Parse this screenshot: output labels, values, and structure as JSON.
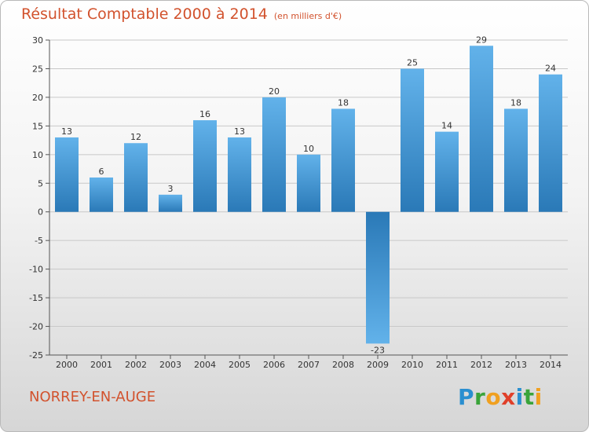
{
  "title": "Résultat Comptable 2000 à 2014",
  "unit_note": "(en milliers d'€)",
  "commune": "NORREY-EN-AUGE",
  "logo": {
    "text": "Proxiti",
    "letters": [
      {
        "ch": "P",
        "color": "#2a8fd0"
      },
      {
        "ch": "r",
        "color": "#3aa43a"
      },
      {
        "ch": "o",
        "color": "#f0a020"
      },
      {
        "ch": "x",
        "color": "#e0402a"
      },
      {
        "ch": "i",
        "color": "#2a8fd0"
      },
      {
        "ch": "t",
        "color": "#3aa43a"
      },
      {
        "ch": "i",
        "color": "#f0a020"
      }
    ]
  },
  "colors": {
    "title": "#d2522d",
    "bar_light": "#62b2ea",
    "bar_dark": "#2a79b7"
  },
  "chart_data": {
    "type": "bar",
    "title": "Résultat Comptable 2000 à 2014",
    "ylabel": "en milliers d'€",
    "categories": [
      "2000",
      "2001",
      "2002",
      "2003",
      "2004",
      "2005",
      "2006",
      "2007",
      "2008",
      "2009",
      "2010",
      "2011",
      "2012",
      "2013",
      "2014"
    ],
    "values": [
      13,
      6,
      12,
      3,
      16,
      13,
      20,
      10,
      18,
      -23,
      25,
      14,
      29,
      18,
      24
    ],
    "ylim": [
      -25,
      30
    ],
    "yticks": [
      30,
      25,
      20,
      15,
      10,
      5,
      0,
      -5,
      -10,
      -15,
      -20,
      -25
    ],
    "grid": true
  }
}
